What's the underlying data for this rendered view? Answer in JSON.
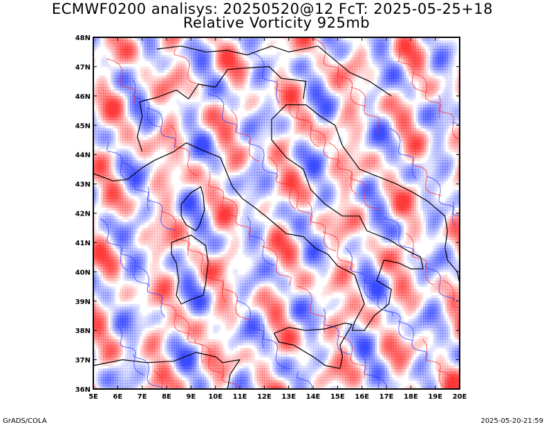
{
  "title": {
    "line1": "ECMWF0200 analisys: 20250520@12 FcT: 2025-05-25+18",
    "line2": "Relative Vorticity 925mb"
  },
  "map": {
    "lon_range": [
      5,
      20
    ],
    "lat_range": [
      36,
      48
    ],
    "x_tick_labels": [
      "5E",
      "6E",
      "7E",
      "8E",
      "9E",
      "10E",
      "11E",
      "12E",
      "13E",
      "14E",
      "15E",
      "16E",
      "17E",
      "18E",
      "19E",
      "20E"
    ],
    "y_tick_labels": [
      "36N",
      "37N",
      "38N",
      "39N",
      "40N",
      "41N",
      "42N",
      "43N",
      "44N",
      "45N",
      "46N",
      "47N",
      "48N"
    ],
    "colors": {
      "positive": "#ff3333",
      "negative": "#3344ff",
      "background": "#ffffff",
      "coastline": "#000000"
    },
    "field": "relative-vorticity",
    "level": "925mb"
  },
  "footer": {
    "left": "GrADS/COLA",
    "right": "2025-05-20-21:59"
  }
}
